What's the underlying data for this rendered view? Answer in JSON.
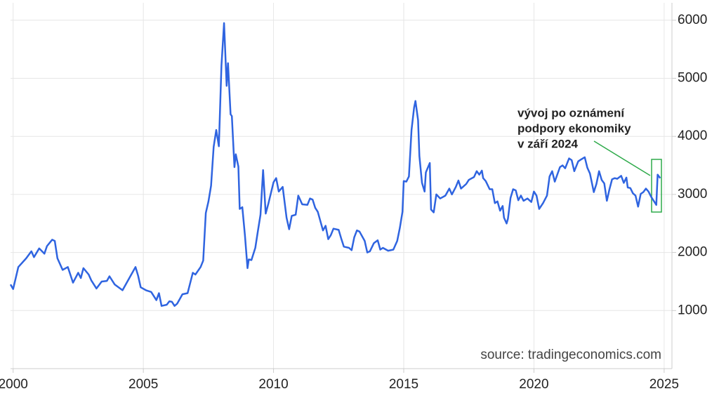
{
  "chart_data": {
    "type": "line",
    "source": "source: tradingeconomics.com",
    "annotation": [
      "vývoj po oznámení",
      "podpory ekonomiky",
      "v září 2024"
    ],
    "annotation_color": "#2eaa4a",
    "grid": true,
    "xlim": [
      1999.9,
      2025.3
    ],
    "xticks": [
      2000,
      2005,
      2010,
      2015,
      2020,
      2025
    ],
    "ylim": [
      0,
      6300
    ],
    "yticks": [
      1000,
      2000,
      3000,
      4000,
      5000,
      6000
    ],
    "series": [
      {
        "color": "#2f64e0",
        "x": [
          1999.9,
          2000.0,
          2000.2,
          2000.5,
          2000.7,
          2000.8,
          2001.0,
          2001.2,
          2001.3,
          2001.5,
          2001.6,
          2001.7,
          2001.9,
          2002.1,
          2002.3,
          2002.5,
          2002.6,
          2002.7,
          2002.9,
          2003.0,
          2003.2,
          2003.4,
          2003.6,
          2003.7,
          2003.9,
          2004.2,
          2004.5,
          2004.7,
          2004.8,
          2004.9,
          2005.1,
          2005.3,
          2005.5,
          2005.6,
          2005.7,
          2005.9,
          2006.0,
          2006.1,
          2006.2,
          2006.3,
          2006.5,
          2006.7,
          2006.9,
          2007.0,
          2007.2,
          2007.3,
          2007.4,
          2007.5,
          2007.6,
          2007.7,
          2007.8,
          2007.9,
          2008.0,
          2008.1,
          2008.2,
          2008.25,
          2008.35,
          2008.4,
          2008.5,
          2008.55,
          2008.65,
          2008.7,
          2008.8,
          2008.9,
          2009.0,
          2009.05,
          2009.15,
          2009.3,
          2009.4,
          2009.5,
          2009.6,
          2009.7,
          2009.8,
          2010.0,
          2010.1,
          2010.2,
          2010.35,
          2010.5,
          2010.6,
          2010.7,
          2010.85,
          2010.95,
          2011.1,
          2011.3,
          2011.4,
          2011.5,
          2011.6,
          2011.7,
          2011.9,
          2012.0,
          2012.1,
          2012.2,
          2012.3,
          2012.5,
          2012.6,
          2012.7,
          2012.9,
          2013.0,
          2013.1,
          2013.2,
          2013.3,
          2013.5,
          2013.6,
          2013.7,
          2013.85,
          2014.0,
          2014.1,
          2014.2,
          2014.4,
          2014.6,
          2014.75,
          2014.85,
          2014.95,
          2015.0,
          2015.1,
          2015.2,
          2015.3,
          2015.4,
          2015.45,
          2015.55,
          2015.6,
          2015.7,
          2015.8,
          2015.85,
          2016.0,
          2016.05,
          2016.15,
          2016.25,
          2016.4,
          2016.6,
          2016.75,
          2016.85,
          2017.0,
          2017.1,
          2017.2,
          2017.4,
          2017.5,
          2017.7,
          2017.8,
          2017.9,
          2018.0,
          2018.05,
          2018.15,
          2018.3,
          2018.4,
          2018.5,
          2018.6,
          2018.7,
          2018.8,
          2018.85,
          2018.95,
          2019.0,
          2019.1,
          2019.2,
          2019.3,
          2019.4,
          2019.5,
          2019.6,
          2019.75,
          2019.9,
          2020.0,
          2020.1,
          2020.2,
          2020.35,
          2020.5,
          2020.6,
          2020.7,
          2020.8,
          2021.0,
          2021.1,
          2021.2,
          2021.35,
          2021.45,
          2021.55,
          2021.7,
          2021.8,
          2021.95,
          2022.05,
          2022.15,
          2022.3,
          2022.4,
          2022.5,
          2022.6,
          2022.7,
          2022.8,
          2022.9,
          2023.0,
          2023.1,
          2023.2,
          2023.35,
          2023.45,
          2023.55,
          2023.6,
          2023.7,
          2023.8,
          2023.9,
          2024.0,
          2024.1,
          2024.2,
          2024.3,
          2024.4,
          2024.5,
          2024.6,
          2024.7,
          2024.75,
          2024.85
        ],
        "values": [
          1450,
          1370,
          1750,
          1900,
          2020,
          1920,
          2070,
          1980,
          2110,
          2220,
          2200,
          1900,
          1700,
          1750,
          1480,
          1650,
          1560,
          1730,
          1620,
          1520,
          1380,
          1500,
          1510,
          1590,
          1450,
          1350,
          1590,
          1750,
          1600,
          1400,
          1350,
          1320,
          1180,
          1300,
          1080,
          1100,
          1160,
          1150,
          1080,
          1120,
          1280,
          1300,
          1650,
          1620,
          1750,
          1860,
          2680,
          2880,
          3150,
          3820,
          4110,
          3830,
          5220,
          5950,
          4870,
          5260,
          4380,
          4350,
          3470,
          3690,
          3480,
          2750,
          2780,
          2300,
          1730,
          1880,
          1870,
          2080,
          2370,
          2650,
          3420,
          2670,
          2840,
          3210,
          3280,
          3050,
          3130,
          2600,
          2400,
          2630,
          2650,
          2980,
          2830,
          2820,
          2930,
          2910,
          2770,
          2700,
          2380,
          2460,
          2230,
          2300,
          2410,
          2390,
          2240,
          2100,
          2080,
          2040,
          2260,
          2380,
          2360,
          2200,
          2000,
          2020,
          2160,
          2210,
          2050,
          2080,
          2030,
          2050,
          2200,
          2420,
          2700,
          3230,
          3220,
          3310,
          4110,
          4500,
          4610,
          4280,
          3660,
          3200,
          3050,
          3380,
          3540,
          2740,
          2690,
          3000,
          2930,
          2980,
          3100,
          3000,
          3130,
          3240,
          3100,
          3180,
          3250,
          3300,
          3400,
          3340,
          3410,
          3280,
          3230,
          3090,
          3090,
          2850,
          2880,
          2720,
          2800,
          2600,
          2500,
          2580,
          2940,
          3090,
          3070,
          2900,
          2980,
          2890,
          2930,
          2870,
          3050,
          2980,
          2750,
          2850,
          2980,
          3310,
          3400,
          3220,
          3470,
          3500,
          3450,
          3620,
          3590,
          3400,
          3570,
          3600,
          3640,
          3460,
          3360,
          3040,
          3180,
          3400,
          3250,
          3190,
          2890,
          3090,
          3260,
          3280,
          3270,
          3320,
          3200,
          3290,
          3120,
          3110,
          3020,
          2980,
          2790,
          3010,
          3040,
          3100,
          3050,
          2960,
          2890,
          2820,
          3340,
          3280
        ]
      }
    ]
  }
}
